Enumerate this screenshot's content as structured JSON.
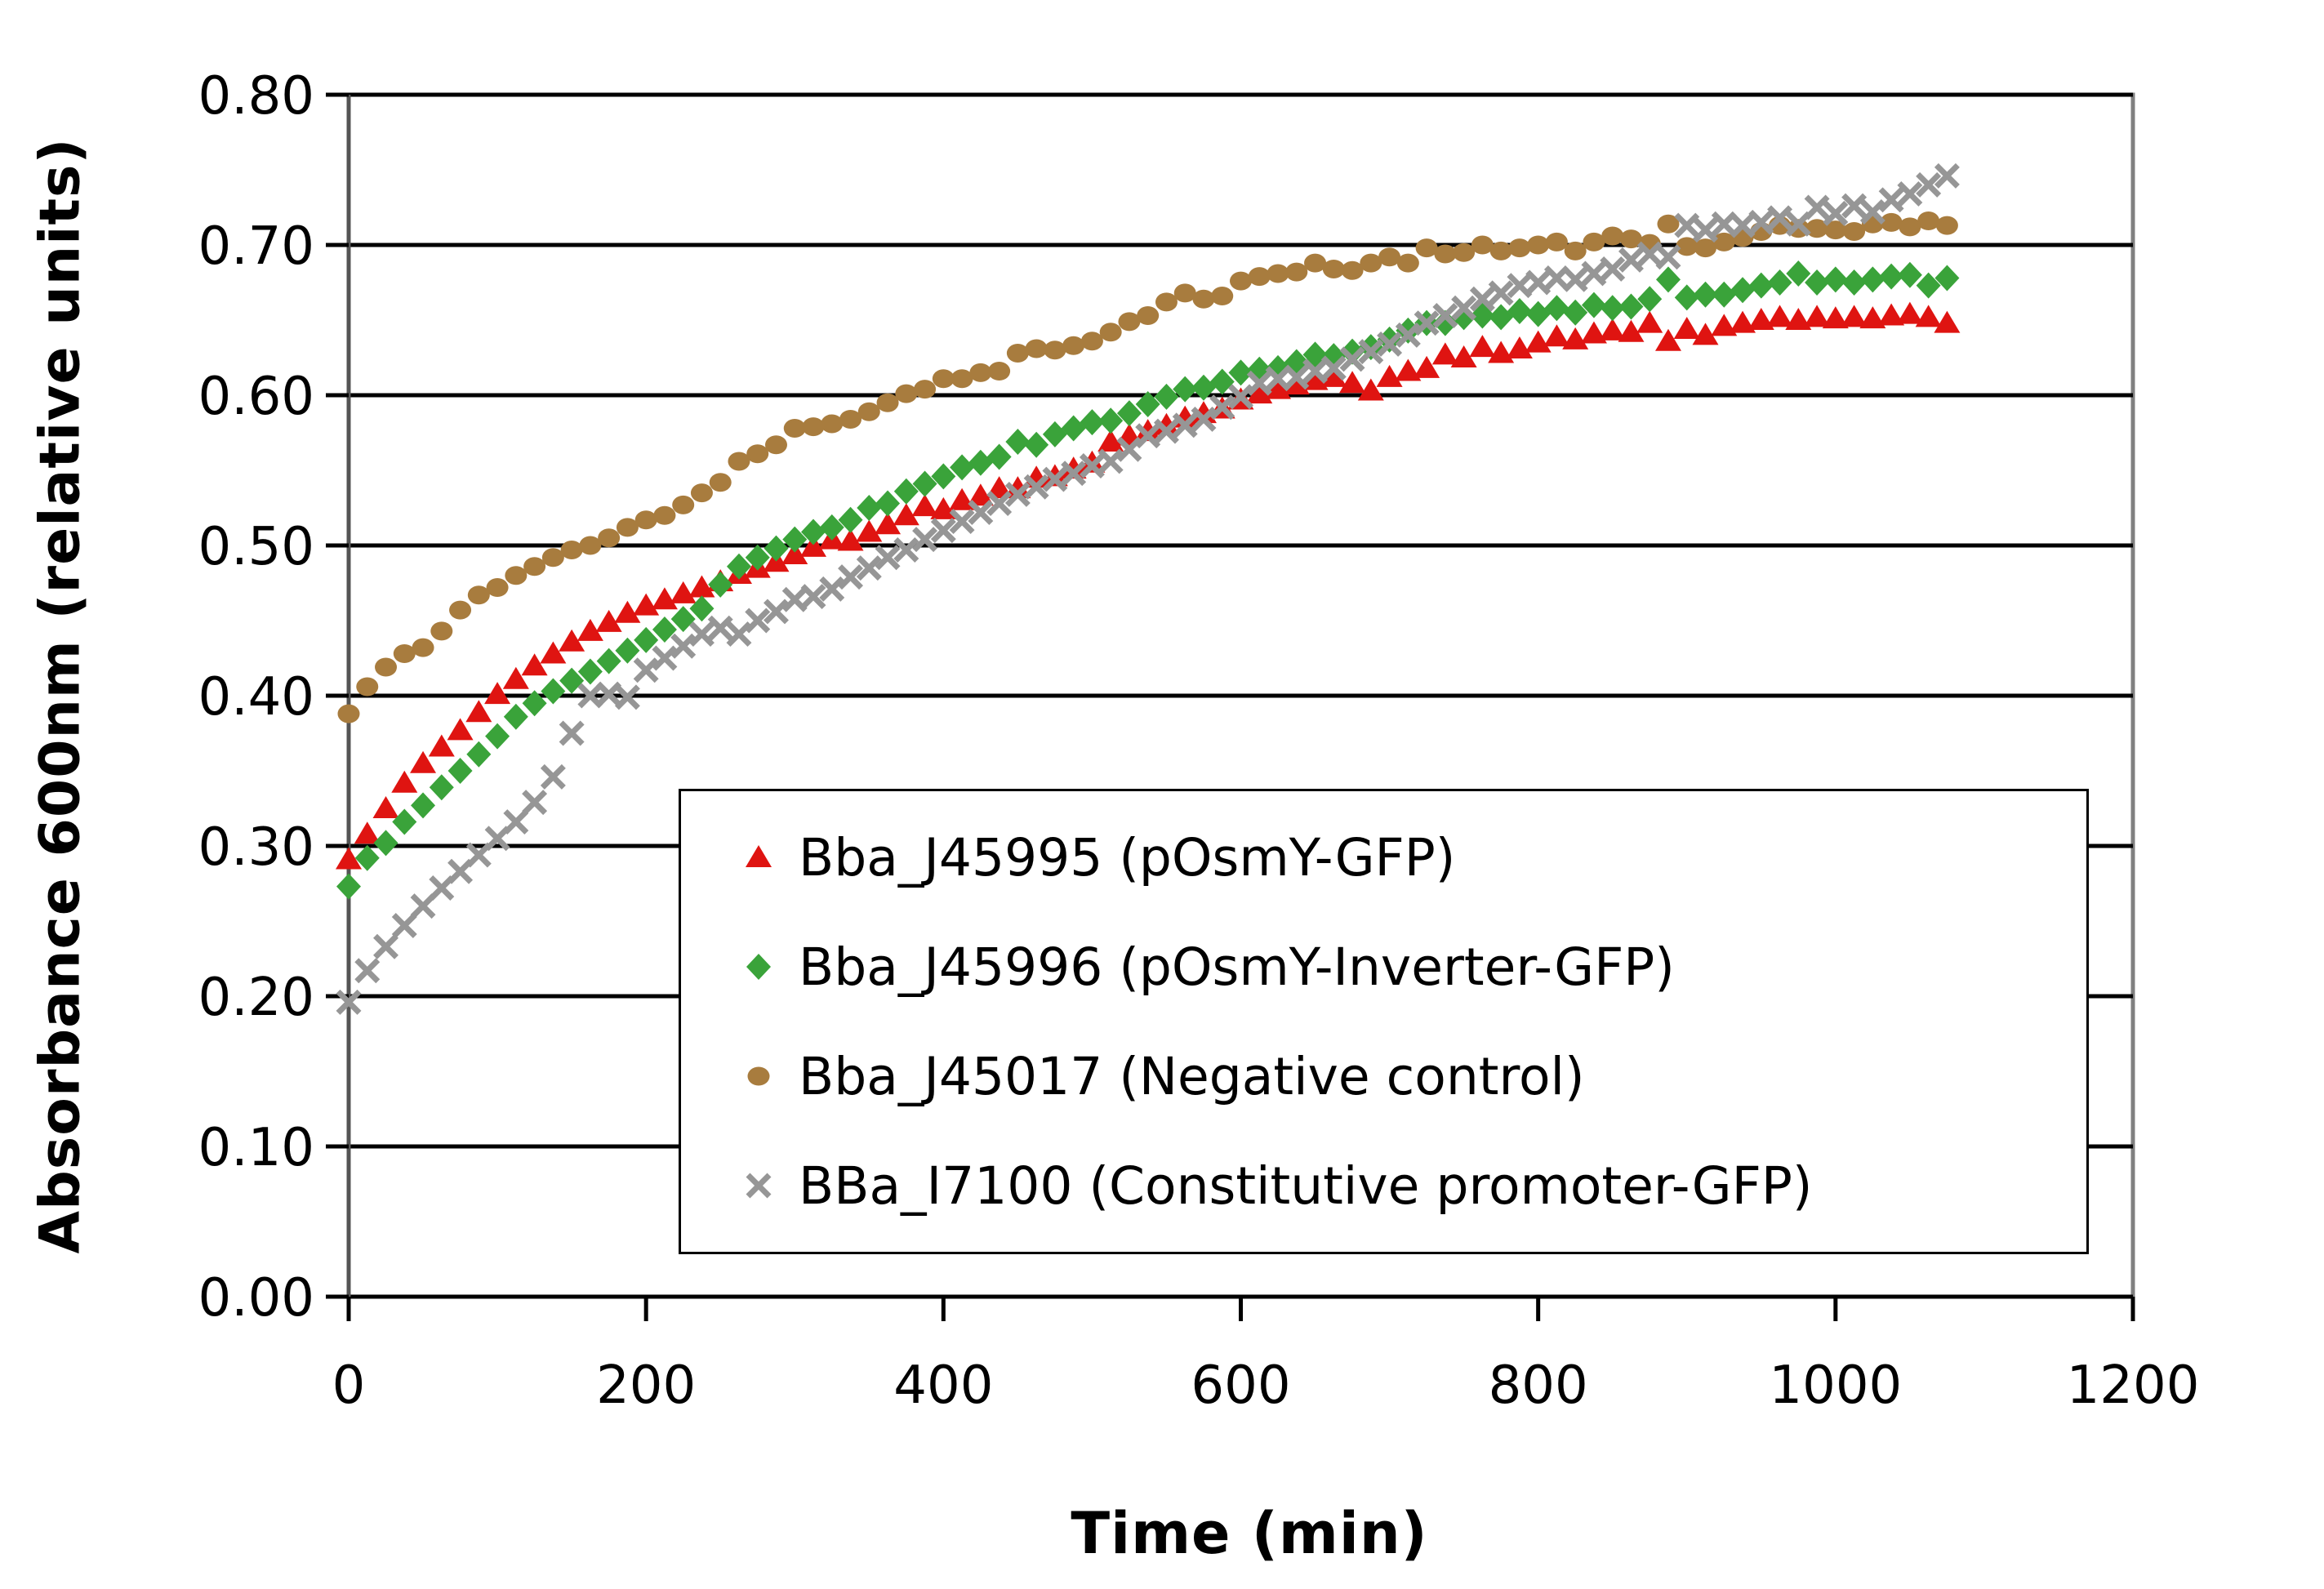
{
  "chart_data": {
    "type": "scatter",
    "title": "",
    "xlabel": "Time (min)",
    "ylabel": "Absorbance 600nm (relative units)",
    "xlim": [
      0,
      1200
    ],
    "ylim": [
      0.0,
      0.8
    ],
    "x_ticks": [
      0,
      200,
      400,
      600,
      800,
      1000,
      1200
    ],
    "x_tick_labels": [
      "0",
      "200",
      "400",
      "600",
      "800",
      "1000",
      "1200"
    ],
    "y_ticks": [
      0.0,
      0.1,
      0.2,
      0.3,
      0.4,
      0.5,
      0.6,
      0.7,
      0.8
    ],
    "y_tick_labels": [
      "0.00",
      "0.10",
      "0.20",
      "0.30",
      "0.40",
      "0.50",
      "0.60",
      "0.70",
      "0.80"
    ],
    "grid": "horizontal-only",
    "gridline_color": "#000000",
    "plot_border_color": "#808080",
    "legend_position": "inside-lower-right",
    "time_step_min": 12.5,
    "time_start_min": 0,
    "series": [
      {
        "name": "Bba_J45995 (pOsmY-GFP)",
        "marker": "triangle",
        "color": "#df1411",
        "values": [
          0.291,
          0.308,
          0.325,
          0.342,
          0.355,
          0.366,
          0.377,
          0.389,
          0.401,
          0.411,
          0.42,
          0.428,
          0.436,
          0.443,
          0.449,
          0.455,
          0.46,
          0.464,
          0.468,
          0.472,
          0.476,
          0.481,
          0.485,
          0.489,
          0.494,
          0.499,
          0.504,
          0.503,
          0.509,
          0.514,
          0.52,
          0.526,
          0.524,
          0.53,
          0.533,
          0.538,
          0.538,
          0.545,
          0.546,
          0.551,
          0.555,
          0.569,
          0.573,
          0.576,
          0.58,
          0.585,
          0.588,
          0.591,
          0.597,
          0.601,
          0.604,
          0.607,
          0.61,
          0.612,
          0.608,
          0.603,
          0.612,
          0.616,
          0.618,
          0.627,
          0.625,
          0.632,
          0.628,
          0.631,
          0.635,
          0.639,
          0.637,
          0.641,
          0.643,
          0.642,
          0.648,
          0.636,
          0.644,
          0.64,
          0.646,
          0.648,
          0.65,
          0.652,
          0.65,
          0.652,
          0.651,
          0.652,
          0.651,
          0.653,
          0.654,
          0.652,
          0.648
        ]
      },
      {
        "name": "Bba_J45996 (pOsmY-Inverter-GFP)",
        "marker": "diamond",
        "color": "#3aa33a",
        "values": [
          0.273,
          0.292,
          0.302,
          0.316,
          0.327,
          0.339,
          0.35,
          0.361,
          0.373,
          0.386,
          0.395,
          0.403,
          0.41,
          0.416,
          0.423,
          0.43,
          0.437,
          0.444,
          0.451,
          0.458,
          0.474,
          0.486,
          0.492,
          0.498,
          0.504,
          0.509,
          0.512,
          0.517,
          0.525,
          0.528,
          0.536,
          0.541,
          0.546,
          0.552,
          0.555,
          0.559,
          0.569,
          0.567,
          0.574,
          0.578,
          0.582,
          0.583,
          0.588,
          0.594,
          0.599,
          0.604,
          0.605,
          0.609,
          0.615,
          0.617,
          0.618,
          0.622,
          0.627,
          0.626,
          0.629,
          0.632,
          0.637,
          0.643,
          0.648,
          0.648,
          0.652,
          0.653,
          0.652,
          0.656,
          0.654,
          0.658,
          0.655,
          0.66,
          0.658,
          0.659,
          0.664,
          0.677,
          0.665,
          0.667,
          0.667,
          0.67,
          0.673,
          0.675,
          0.681,
          0.675,
          0.677,
          0.675,
          0.677,
          0.679,
          0.68,
          0.673,
          0.678
        ]
      },
      {
        "name": "Bba_J45017 (Negative control)",
        "marker": "circle",
        "color": "#a87c3e",
        "values": [
          0.388,
          0.406,
          0.419,
          0.428,
          0.432,
          0.443,
          0.457,
          0.467,
          0.472,
          0.48,
          0.486,
          0.492,
          0.497,
          0.5,
          0.505,
          0.512,
          0.517,
          0.52,
          0.527,
          0.535,
          0.542,
          0.556,
          0.561,
          0.567,
          0.578,
          0.579,
          0.581,
          0.584,
          0.589,
          0.595,
          0.601,
          0.604,
          0.611,
          0.611,
          0.615,
          0.616,
          0.628,
          0.631,
          0.63,
          0.633,
          0.636,
          0.642,
          0.649,
          0.653,
          0.662,
          0.668,
          0.664,
          0.666,
          0.676,
          0.679,
          0.681,
          0.682,
          0.688,
          0.684,
          0.683,
          0.688,
          0.692,
          0.688,
          0.698,
          0.694,
          0.695,
          0.7,
          0.696,
          0.698,
          0.7,
          0.702,
          0.696,
          0.702,
          0.706,
          0.704,
          0.701,
          0.714,
          0.699,
          0.698,
          0.702,
          0.705,
          0.709,
          0.713,
          0.711,
          0.711,
          0.71,
          0.709,
          0.714,
          0.715,
          0.712,
          0.716,
          0.713
        ]
      },
      {
        "name": "BBa_I7100 (Constitutive promoter-GFP)",
        "marker": "x",
        "color": "#969696",
        "values": [
          0.196,
          0.217,
          0.233,
          0.247,
          0.26,
          0.272,
          0.283,
          0.294,
          0.305,
          0.316,
          0.329,
          0.346,
          0.375,
          0.4,
          0.401,
          0.399,
          0.417,
          0.425,
          0.433,
          0.441,
          0.445,
          0.441,
          0.45,
          0.456,
          0.464,
          0.466,
          0.471,
          0.479,
          0.485,
          0.492,
          0.497,
          0.504,
          0.51,
          0.516,
          0.522,
          0.528,
          0.534,
          0.539,
          0.544,
          0.548,
          0.553,
          0.556,
          0.564,
          0.573,
          0.576,
          0.58,
          0.584,
          0.592,
          0.599,
          0.608,
          0.611,
          0.612,
          0.616,
          0.618,
          0.624,
          0.629,
          0.634,
          0.64,
          0.648,
          0.653,
          0.658,
          0.664,
          0.668,
          0.673,
          0.675,
          0.678,
          0.677,
          0.681,
          0.684,
          0.69,
          0.694,
          0.692,
          0.713,
          0.71,
          0.714,
          0.713,
          0.715,
          0.718,
          0.714,
          0.725,
          0.721,
          0.726,
          0.722,
          0.73,
          0.734,
          0.74,
          0.746
        ]
      }
    ]
  }
}
